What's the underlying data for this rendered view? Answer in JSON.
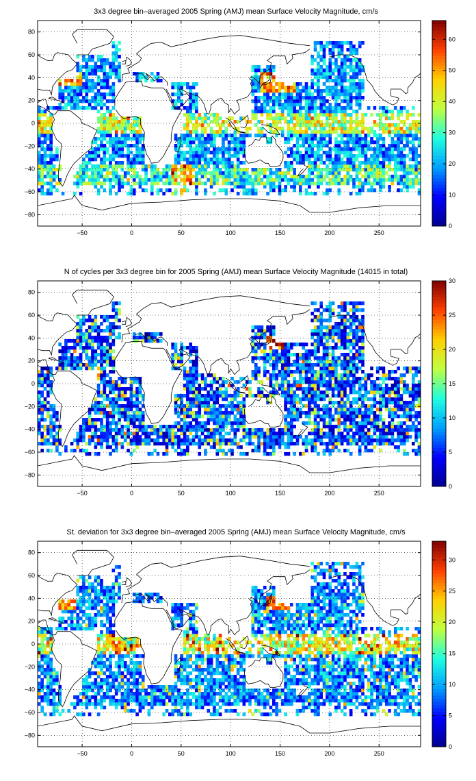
{
  "chart_data": [
    {
      "type": "heatmap",
      "title": "3x3 degree bin–averaged 2005 Spring (AMJ) mean Surface Velocity Magnitude, cm/s",
      "xlabel": "",
      "ylabel": "",
      "xlim": [
        -95,
        292
      ],
      "ylim": [
        -90,
        90
      ],
      "x_ticks": [
        -50,
        0,
        50,
        100,
        150,
        200,
        250
      ],
      "y_ticks": [
        80,
        60,
        40,
        20,
        0,
        -20,
        -40,
        -60,
        -80
      ],
      "grid": true,
      "colorbar": {
        "min": 0,
        "max": 66,
        "ticks": [
          0,
          10,
          20,
          30,
          40,
          50,
          60
        ]
      },
      "colormap": [
        "#00008f",
        "#0000ff",
        "#00a0ff",
        "#20ffdf",
        "#bfff40",
        "#ffd000",
        "#ff4000",
        "#800000"
      ]
    },
    {
      "type": "heatmap",
      "title": "N of cycles per 3x3 degree bin for 2005 Spring (AMJ) mean Surface Velocity Magnitude (14015 in total)",
      "xlabel": "",
      "ylabel": "",
      "xlim": [
        -95,
        292
      ],
      "ylim": [
        -90,
        90
      ],
      "x_ticks": [
        -50,
        0,
        50,
        100,
        150,
        200,
        250
      ],
      "y_ticks": [
        80,
        60,
        40,
        20,
        0,
        -20,
        -40,
        -60,
        -80
      ],
      "grid": true,
      "colorbar": {
        "min": 0,
        "max": 30,
        "ticks": [
          0,
          5,
          10,
          15,
          20,
          25,
          30
        ]
      },
      "colormap": [
        "#00008f",
        "#0000ff",
        "#00a0ff",
        "#20ffdf",
        "#bfff40",
        "#ffd000",
        "#ff4000",
        "#800000"
      ]
    },
    {
      "type": "heatmap",
      "title": "St. deviation for 3x3 degree bin–averaged 2005 Spring (AMJ) mean Surface Velocity Magnitude, cm/s",
      "xlabel": "",
      "ylabel": "",
      "xlim": [
        -95,
        292
      ],
      "ylim": [
        -90,
        90
      ],
      "x_ticks": [
        -50,
        0,
        50,
        100,
        150,
        200,
        250
      ],
      "y_ticks": [
        80,
        60,
        40,
        20,
        0,
        -20,
        -40,
        -60,
        -80
      ],
      "grid": true,
      "colorbar": {
        "min": 0,
        "max": 33,
        "ticks": [
          0,
          5,
          10,
          15,
          20,
          25,
          30
        ]
      },
      "colormap": [
        "#00008f",
        "#0000ff",
        "#00a0ff",
        "#20ffdf",
        "#bfff40",
        "#ffd000",
        "#ff4000",
        "#800000"
      ]
    }
  ]
}
